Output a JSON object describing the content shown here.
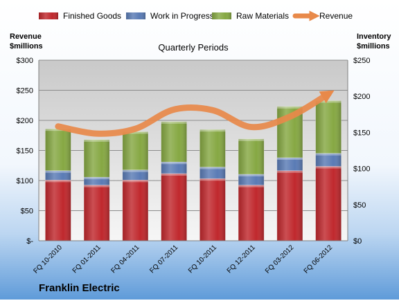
{
  "chart_data": {
    "type": "bar",
    "title": "Quarterly Periods",
    "company": "Franklin Electric",
    "left_axis_title": [
      "Revenue",
      "$millions"
    ],
    "right_axis_title": [
      "Inventory",
      "$millions"
    ],
    "categories": [
      "FQ 10-2010",
      "FQ 01-2011",
      "FQ 04-2011",
      "FQ 07-2011",
      "FQ 10-2011",
      "FQ 12-2011",
      "FQ 03-2012",
      "FQ 06-2012"
    ],
    "left_axis": {
      "min": 0,
      "max": 300,
      "step": 50,
      "tick_labels": [
        "$-",
        "$50",
        "$100",
        "$150",
        "$200",
        "$250",
        "$300"
      ]
    },
    "right_axis": {
      "min": 0,
      "max": 250,
      "step": 50,
      "tick_labels": [
        "$0",
        "$50",
        "$100",
        "$150",
        "$200",
        "$250"
      ]
    },
    "series": [
      {
        "name": "Finished Goods",
        "type": "stacked-bar",
        "axis": "right",
        "color": "#c0282d",
        "values": [
          84,
          77,
          84,
          93,
          86,
          77,
          97,
          103
        ]
      },
      {
        "name": "Work in Progress",
        "type": "stacked-bar",
        "axis": "right",
        "color": "#5a7bb5",
        "values": [
          13,
          11,
          14,
          16,
          16,
          15,
          18,
          18
        ]
      },
      {
        "name": "Raw Materials",
        "type": "stacked-bar",
        "axis": "right",
        "color": "#86a843",
        "values": [
          58,
          52,
          53,
          56,
          52,
          49,
          71,
          73
        ]
      },
      {
        "name": "Revenue",
        "type": "line",
        "axis": "left",
        "color": "#e8894a",
        "values": [
          190,
          178,
          186,
          218,
          217,
          189,
          206,
          244
        ]
      }
    ],
    "grid": true,
    "legend_position": "top"
  }
}
